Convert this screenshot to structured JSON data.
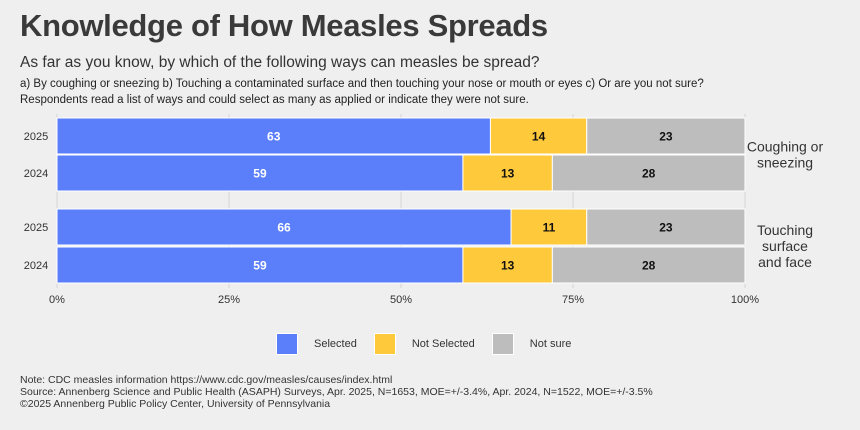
{
  "title": "Knowledge of How Measles Spreads",
  "subtitle": "As far as you know, by which of the following ways can measles be spread?",
  "subtitle_options": "a) By coughing or sneezing b) Touching a contaminated surface and then touching your nose or mouth or eyes c) Or are you not sure?",
  "subtitle_note": "Respondents read a list of ways and could select as many as applied or indicate they were not sure.",
  "colors": {
    "Selected": "#5b7ffb",
    "Not Selected": "#ffc93c",
    "Not sure": "#bdbdbd",
    "background": "#efefef"
  },
  "chart_data": {
    "type": "bar",
    "orientation": "horizontal",
    "stacked": true,
    "xlim": [
      0,
      100
    ],
    "x_ticks": [
      "0%",
      "25%",
      "50%",
      "75%",
      "100%"
    ],
    "legend_position": "bottom",
    "grid": true,
    "groups": [
      {
        "label": "Coughing or sneezing",
        "label_lines": [
          "Coughing or",
          "sneezing"
        ],
        "rows": [
          {
            "year": "2025",
            "values": {
              "Selected": 63,
              "Not Selected": 14,
              "Not sure": 23
            }
          },
          {
            "year": "2024",
            "values": {
              "Selected": 59,
              "Not Selected": 13,
              "Not sure": 28
            }
          }
        ]
      },
      {
        "label": "Touching surface and face",
        "label_lines": [
          "Touching",
          "surface",
          "and face"
        ],
        "rows": [
          {
            "year": "2025",
            "values": {
              "Selected": 66,
              "Not Selected": 11,
              "Not sure": 23
            }
          },
          {
            "year": "2024",
            "values": {
              "Selected": 59,
              "Not Selected": 13,
              "Not sure": 28
            }
          }
        ]
      }
    ],
    "series": [
      {
        "name": "Selected"
      },
      {
        "name": "Not Selected"
      },
      {
        "name": "Not sure"
      }
    ]
  },
  "legend": [
    "Selected",
    "Not Selected",
    "Not sure"
  ],
  "notes": [
    "Note: CDC measles information https://www.cdc.gov/measles/causes/index.html",
    "Source: Annenberg Science and Public Health (ASAPH) Surveys, Apr. 2025, N=1653, MOE=+/-3.4%, Apr. 2024, N=1522, MOE=+/-3.5%",
    "©2025 Annenberg Public Policy Center, University of Pennsylvania"
  ]
}
